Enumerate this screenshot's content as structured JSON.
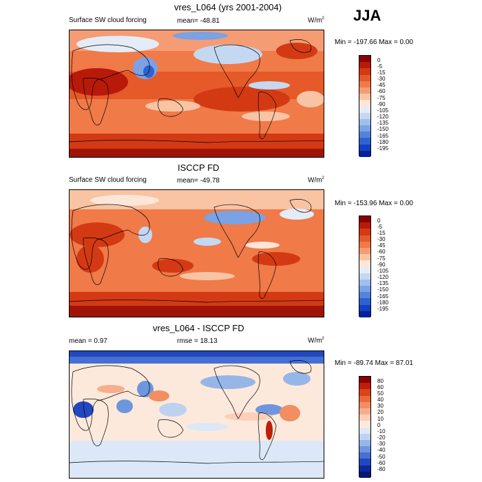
{
  "season": "JJA",
  "panels": [
    {
      "title": "vres_L064 (yrs 2001-2004)",
      "left_label": "Surface SW cloud forcing",
      "mid_label": "mean= -48.81",
      "units": "W/m",
      "units_sup": "2",
      "minmax": "Min = -197.66 Max =   0.00"
    },
    {
      "title": "ISCCP FD",
      "left_label": "Surface SW cloud forcing",
      "mid_label": "mean= -49.78",
      "units": "W/m",
      "units_sup": "2",
      "minmax": "Min = -153.96 Max =   0.00"
    },
    {
      "title": "vres_L064 - ISCCP FD",
      "left_label": "mean =   0.97",
      "mid_label": "rmse =  18.13",
      "units": "W/m",
      "units_sup": "2",
      "minmax": "Min = -89.74 Max =  87.01"
    }
  ],
  "legend_abs": {
    "labels": [
      "0",
      "-5",
      "-15",
      "-30",
      "-45",
      "-60",
      "-75",
      "-90",
      "-105",
      "-120",
      "-135",
      "-150",
      "-165",
      "-180",
      "-195"
    ],
    "colors": [
      "#8b0000",
      "#b81a0a",
      "#d33a14",
      "#e55a28",
      "#f07a48",
      "#f59c74",
      "#f9c4a4",
      "#fde6d8",
      "#e4ecf8",
      "#c4d8f2",
      "#a0bfec",
      "#7aa2e4",
      "#5483dc",
      "#2e62d2",
      "#1240c2",
      "#06209c"
    ]
  },
  "legend_diff": {
    "labels": [
      "80",
      "60",
      "50",
      "40",
      "30",
      "20",
      "10",
      "0",
      "-10",
      "-20",
      "-30",
      "-40",
      "-50",
      "-60",
      "-80"
    ],
    "colors": [
      "#8b0000",
      "#c01e0a",
      "#d94419",
      "#ec6a3a",
      "#f38d62",
      "#f7ae8c",
      "#fbcfb8",
      "#fde9dc",
      "#dce8f7",
      "#bcd2f0",
      "#96b6e8",
      "#6e96de",
      "#466fd2",
      "#2248c0",
      "#0a2a9c",
      "#061870"
    ]
  }
}
